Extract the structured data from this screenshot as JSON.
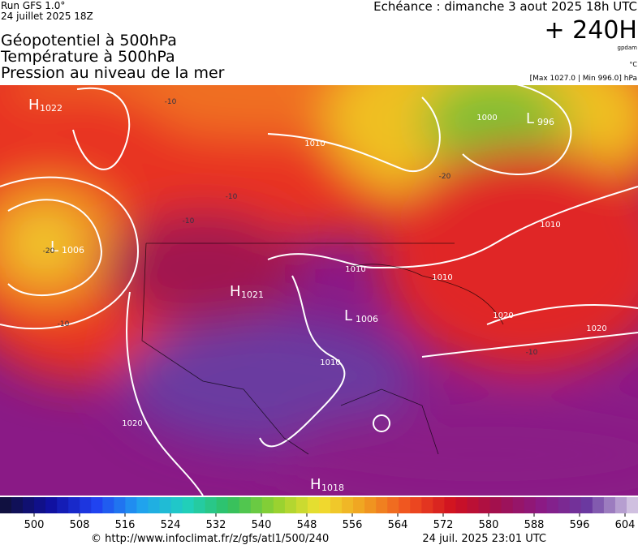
{
  "header": {
    "run": "Run GFS 1.0°",
    "date": "24 juillet 2025 18Z",
    "echeance": "Echéance : dimanche 3 aout 2025 18h UTC",
    "lead": "+ 240H",
    "unit_gpdam": "gpdam",
    "unit_c": "°C",
    "range": "[Max 1027.0 | Min 996.0] hPa"
  },
  "titles": [
    "Géopotentiel à 500hPa",
    "Température à 500hPa",
    "Pression au niveau de la mer"
  ],
  "map": {
    "pressure_centers": [
      {
        "letter": "H",
        "value": "1022"
      },
      {
        "letter": "L",
        "value": "1006"
      },
      {
        "letter": "L",
        "value": "996"
      },
      {
        "letter": "H",
        "value": "1021"
      },
      {
        "letter": "L",
        "value": "1006"
      },
      {
        "letter": "H",
        "value": "1018"
      }
    ],
    "isobar_labels": [
      "1010",
      "1000",
      "1010",
      "1010",
      "1010",
      "1020",
      "1020",
      "1010",
      "1020"
    ],
    "temperature_labels": [
      "-20",
      "-10",
      "-10",
      "-10",
      "-10",
      "-10",
      "-20"
    ]
  },
  "colorbar": {
    "labels": [
      "500",
      "508",
      "516",
      "524",
      "532",
      "540",
      "548",
      "556",
      "564",
      "572",
      "580",
      "588",
      "596",
      "604"
    ]
  },
  "footer": {
    "url": "© http://www.infoclimat.fr/z/gfs/atl1/500/240",
    "timestamp": "24 juil. 2025 23:01 UTC"
  }
}
